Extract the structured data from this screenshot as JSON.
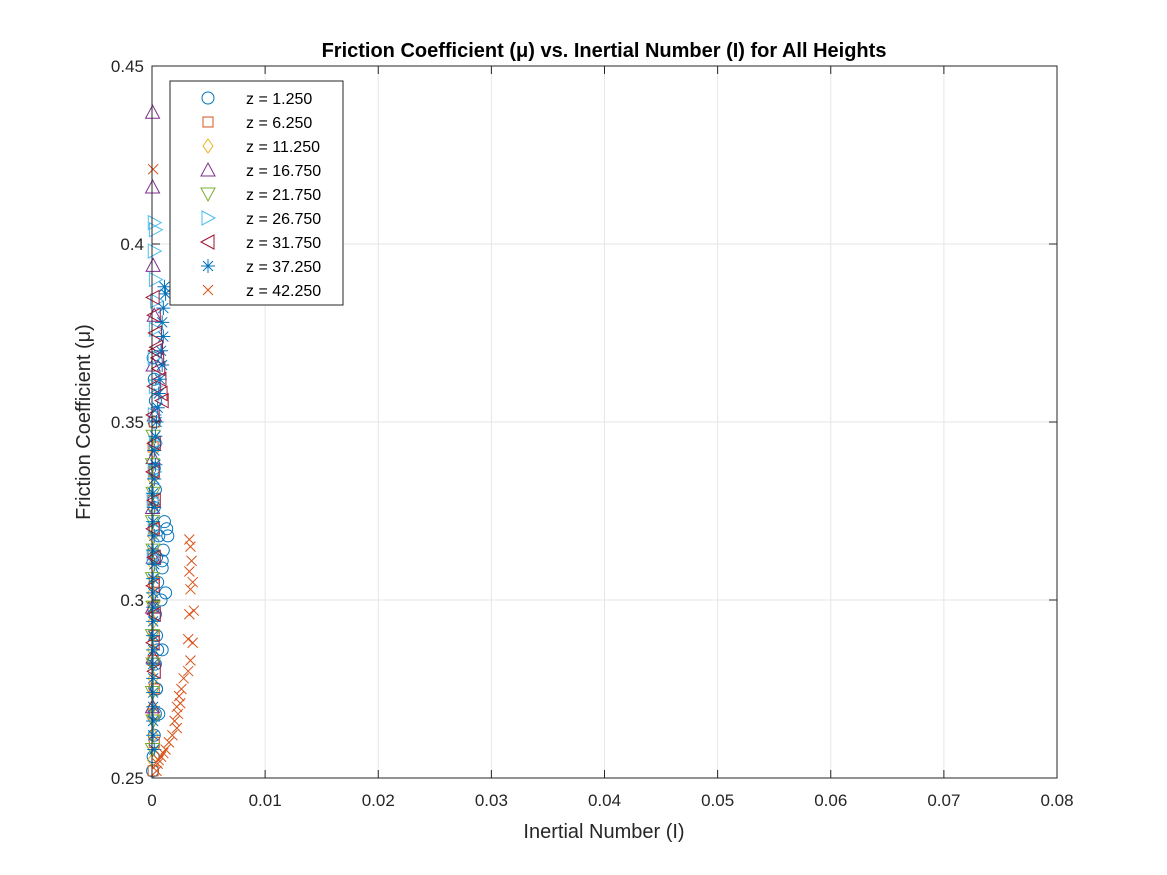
{
  "chart_data": {
    "type": "scatter",
    "title": "Friction Coefficient (μ) vs. Inertial Number (I) for All Heights",
    "xlabel": "Inertial Number (I)",
    "ylabel": "Friction Coefficient (μ)",
    "xlim": [
      0,
      0.08
    ],
    "ylim": [
      0.25,
      0.45
    ],
    "xticks": [
      0,
      0.01,
      0.02,
      0.03,
      0.04,
      0.05,
      0.06,
      0.07,
      0.08
    ],
    "xtick_labels": [
      "0",
      "0.01",
      "0.02",
      "0.03",
      "0.04",
      "0.05",
      "0.06",
      "0.07",
      "0.08"
    ],
    "yticks": [
      0.25,
      0.3,
      0.35,
      0.4,
      0.45
    ],
    "ytick_labels": [
      "0.25",
      "0.3",
      "0.35",
      "0.4",
      "0.45"
    ],
    "grid": true,
    "legend_position": "top-left",
    "series": [
      {
        "name": "z = 1.250",
        "marker": "circle",
        "color": "#0072BD",
        "points": [
          [
            5e-05,
            0.252
          ],
          [
            0.0001,
            0.256
          ],
          [
            0.0002,
            0.262
          ],
          [
            0.0003,
            0.268
          ],
          [
            0.0004,
            0.275
          ],
          [
            0.0003,
            0.282
          ],
          [
            0.0005,
            0.286
          ],
          [
            0.0009,
            0.286
          ],
          [
            0.0004,
            0.29
          ],
          [
            0.0003,
            0.296
          ],
          [
            0.0008,
            0.3
          ],
          [
            0.0012,
            0.302
          ],
          [
            0.0005,
            0.305
          ],
          [
            0.0009,
            0.309
          ],
          [
            0.0004,
            0.312
          ],
          [
            0.001,
            0.314
          ],
          [
            0.0014,
            0.318
          ],
          [
            0.0011,
            0.322
          ],
          [
            0.0013,
            0.32
          ],
          [
            0.0006,
            0.318
          ],
          [
            0.0009,
            0.311
          ],
          [
            0.0002,
            0.326
          ],
          [
            0.0003,
            0.331
          ],
          [
            0.0002,
            0.337
          ],
          [
            0.0003,
            0.344
          ],
          [
            0.0002,
            0.35
          ],
          [
            0.0003,
            0.356
          ],
          [
            0.0002,
            0.362
          ],
          [
            0.0001,
            0.368
          ],
          [
            0.0004,
            0.275
          ],
          [
            0.0006,
            0.268
          ]
        ]
      },
      {
        "name": "z = 6.250",
        "marker": "square",
        "color": "#D95319",
        "points": [
          [
            0.0001,
            0.252
          ],
          [
            0.0002,
            0.26
          ],
          [
            0.0001,
            0.268
          ],
          [
            0.0002,
            0.275
          ],
          [
            0.0001,
            0.283
          ],
          [
            0.0002,
            0.29
          ],
          [
            0.0001,
            0.298
          ],
          [
            0.0002,
            0.305
          ],
          [
            0.0001,
            0.313
          ],
          [
            0.0002,
            0.32
          ],
          [
            0.0001,
            0.328
          ],
          [
            0.0002,
            0.336
          ],
          [
            0.0001,
            0.343
          ],
          [
            0.0002,
            0.35
          ]
        ]
      },
      {
        "name": "z = 11.250",
        "marker": "diamond",
        "color": "#EDB120",
        "points": [
          [
            5e-05,
            0.255
          ],
          [
            0.0001,
            0.262
          ],
          [
            5e-05,
            0.27
          ],
          [
            0.0001,
            0.278
          ],
          [
            5e-05,
            0.286
          ],
          [
            0.0001,
            0.294
          ],
          [
            5e-05,
            0.302
          ],
          [
            0.0001,
            0.31
          ],
          [
            5e-05,
            0.318
          ],
          [
            0.0001,
            0.326
          ],
          [
            5e-05,
            0.334
          ],
          [
            0.0001,
            0.342
          ]
        ]
      },
      {
        "name": "z = 16.750",
        "marker": "triangle-up",
        "color": "#7E2F8E",
        "points": [
          [
            5e-05,
            0.437
          ],
          [
            5e-05,
            0.416
          ],
          [
            0.0001,
            0.394
          ],
          [
            0.0002,
            0.38
          ],
          [
            0.0001,
            0.366
          ],
          [
            0.0002,
            0.352
          ],
          [
            0.0001,
            0.34
          ],
          [
            5e-05,
            0.326
          ],
          [
            0.0001,
            0.312
          ],
          [
            5e-05,
            0.298
          ],
          [
            0.0001,
            0.284
          ],
          [
            5e-05,
            0.27
          ]
        ]
      },
      {
        "name": "z = 21.750",
        "marker": "triangle-down",
        "color": "#77AC30",
        "points": [
          [
            5e-05,
            0.258
          ],
          [
            0.0001,
            0.266
          ],
          [
            5e-05,
            0.274
          ],
          [
            0.0001,
            0.282
          ],
          [
            5e-05,
            0.29
          ],
          [
            0.0001,
            0.298
          ],
          [
            5e-05,
            0.306
          ],
          [
            0.0001,
            0.314
          ],
          [
            5e-05,
            0.322
          ],
          [
            0.0001,
            0.33
          ],
          [
            5e-05,
            0.338
          ],
          [
            0.0001,
            0.346
          ]
        ]
      },
      {
        "name": "z = 26.750",
        "marker": "triangle-right",
        "color": "#4DBEEE",
        "points": [
          [
            0.0002,
            0.406
          ],
          [
            0.0003,
            0.404
          ],
          [
            0.0002,
            0.398
          ],
          [
            0.0003,
            0.39
          ],
          [
            0.0004,
            0.384
          ],
          [
            0.0003,
            0.376
          ],
          [
            0.0002,
            0.368
          ],
          [
            0.0003,
            0.36
          ],
          [
            0.0002,
            0.352
          ],
          [
            0.0003,
            0.344
          ],
          [
            0.0002,
            0.336
          ],
          [
            0.0001,
            0.328
          ],
          [
            0.0002,
            0.32
          ],
          [
            0.0001,
            0.312
          ]
        ]
      },
      {
        "name": "z = 31.750",
        "marker": "triangle-left",
        "color": "#A2142F",
        "points": [
          [
            0.0001,
            0.385
          ],
          [
            0.0002,
            0.38
          ],
          [
            0.0003,
            0.375
          ],
          [
            0.0004,
            0.371
          ],
          [
            0.0005,
            0.368
          ],
          [
            0.0006,
            0.365
          ],
          [
            0.0007,
            0.362
          ],
          [
            0.0008,
            0.358
          ],
          [
            0.0009,
            0.356
          ],
          [
            0.0003,
            0.37
          ],
          [
            0.0002,
            0.36
          ],
          [
            0.0001,
            0.352
          ],
          [
            0.0002,
            0.344
          ],
          [
            0.0001,
            0.336
          ],
          [
            0.0002,
            0.328
          ],
          [
            0.0001,
            0.32
          ],
          [
            0.0002,
            0.312
          ],
          [
            0.0001,
            0.304
          ],
          [
            0.0002,
            0.296
          ],
          [
            0.0001,
            0.288
          ],
          [
            0.0002,
            0.28
          ]
        ]
      },
      {
        "name": "z = 37.250",
        "marker": "asterisk",
        "color": "#0072BD",
        "points": [
          [
            0.0011,
            0.388
          ],
          [
            0.0012,
            0.386
          ],
          [
            0.001,
            0.382
          ],
          [
            0.0009,
            0.378
          ],
          [
            0.001,
            0.374
          ],
          [
            0.0008,
            0.37
          ],
          [
            0.0009,
            0.366
          ],
          [
            0.0007,
            0.362
          ],
          [
            0.0006,
            0.358
          ],
          [
            0.0005,
            0.354
          ],
          [
            0.0004,
            0.35
          ],
          [
            0.0003,
            0.346
          ],
          [
            0.0002,
            0.342
          ],
          [
            0.0003,
            0.338
          ],
          [
            0.0002,
            0.334
          ],
          [
            0.0001,
            0.33
          ],
          [
            0.0002,
            0.326
          ],
          [
            0.0001,
            0.322
          ],
          [
            0.0002,
            0.318
          ],
          [
            0.0001,
            0.314
          ],
          [
            0.0002,
            0.31
          ],
          [
            0.0001,
            0.306
          ],
          [
            0.0001,
            0.302
          ],
          [
            0.0001,
            0.298
          ],
          [
            0.0001,
            0.294
          ],
          [
            0.0001,
            0.29
          ],
          [
            0.0001,
            0.286
          ],
          [
            0.0001,
            0.282
          ],
          [
            0.0001,
            0.278
          ],
          [
            0.0001,
            0.274
          ],
          [
            0.0001,
            0.27
          ],
          [
            0.0001,
            0.266
          ],
          [
            0.0001,
            0.262
          ],
          [
            0.0002,
            0.258
          ]
        ]
      },
      {
        "name": "z = 42.250",
        "marker": "x",
        "color": "#D95319",
        "points": [
          [
            0.0001,
            0.421
          ],
          [
            0.0033,
            0.317
          ],
          [
            0.0034,
            0.315
          ],
          [
            0.0035,
            0.311
          ],
          [
            0.0033,
            0.308
          ],
          [
            0.0036,
            0.305
          ],
          [
            0.0034,
            0.303
          ],
          [
            0.0037,
            0.297
          ],
          [
            0.0033,
            0.296
          ],
          [
            0.0032,
            0.289
          ],
          [
            0.0036,
            0.288
          ],
          [
            0.0034,
            0.283
          ],
          [
            0.0032,
            0.28
          ],
          [
            0.0028,
            0.278
          ],
          [
            0.0026,
            0.275
          ],
          [
            0.0024,
            0.273
          ],
          [
            0.0025,
            0.271
          ],
          [
            0.0022,
            0.27
          ],
          [
            0.0023,
            0.268
          ],
          [
            0.002,
            0.266
          ],
          [
            0.0022,
            0.264
          ],
          [
            0.0018,
            0.262
          ],
          [
            0.0015,
            0.26
          ],
          [
            0.0012,
            0.258
          ],
          [
            0.001,
            0.257
          ],
          [
            0.0008,
            0.256
          ],
          [
            0.0006,
            0.255
          ],
          [
            0.0005,
            0.254
          ],
          [
            0.0004,
            0.252
          ]
        ]
      }
    ]
  }
}
